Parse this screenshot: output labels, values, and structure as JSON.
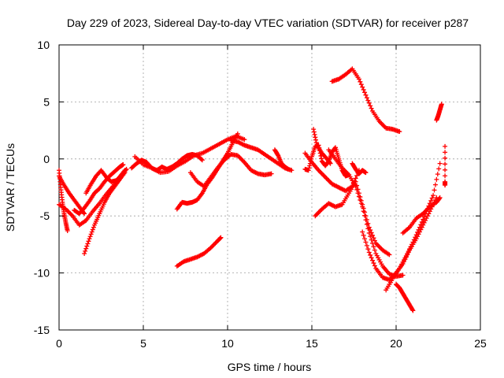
{
  "chart_data": {
    "type": "scatter",
    "title": "Day 229 of 2023, Sidereal Day-to-day VTEC variation (SDTVAR) for receiver p287",
    "xlabel": "GPS time / hours",
    "ylabel": "SDTVAR / TECUs",
    "xlim": [
      0,
      25
    ],
    "ylim": [
      -15,
      10
    ],
    "xticks": [
      "0",
      "5",
      "10",
      "15",
      "20",
      "25"
    ],
    "yticks": [
      "-15",
      "-10",
      "-5",
      "0",
      "5",
      "10"
    ],
    "grid": true,
    "marker": "+",
    "color": "#ff0000",
    "series": [
      {
        "x": [
          0.0,
          0.1,
          0.2,
          0.3,
          0.4,
          0.5
        ],
        "y": [
          -1.0,
          -2.5,
          -3.8,
          -4.8,
          -5.6,
          -6.3
        ]
      },
      {
        "x": [
          0.0,
          0.3,
          0.6,
          0.9,
          1.2,
          1.5
        ],
        "y": [
          -1.5,
          -2.3,
          -3.0,
          -3.6,
          -4.2,
          -4.8
        ]
      },
      {
        "x": [
          0.0,
          0.4,
          0.8,
          1.2,
          1.6,
          2.0,
          2.4,
          2.8,
          3.2,
          3.6,
          3.9
        ],
        "y": [
          -4.0,
          -4.4,
          -5.0,
          -5.8,
          -5.4,
          -4.6,
          -3.9,
          -3.1,
          -2.4,
          -1.6,
          -1.0
        ]
      },
      {
        "x": [
          0.9,
          1.2,
          1.5,
          1.8,
          2.1,
          2.4,
          2.7,
          3.0,
          3.3,
          3.6,
          3.8
        ],
        "y": [
          -4.5,
          -4.8,
          -4.3,
          -3.7,
          -3.0,
          -2.6,
          -2.0,
          -1.5,
          -1.1,
          -0.7,
          -0.5
        ]
      },
      {
        "x": [
          1.5,
          1.8,
          2.1,
          2.4,
          2.7,
          3.0,
          3.3,
          3.6,
          3.9
        ],
        "y": [
          -8.3,
          -7.0,
          -5.8,
          -4.8,
          -3.8,
          -3.0,
          -2.4,
          -1.8,
          -1.2
        ]
      },
      {
        "x": [
          1.6,
          1.9,
          2.2,
          2.5,
          2.8,
          3.1,
          3.4,
          3.7,
          4.0
        ],
        "y": [
          -3.0,
          -2.2,
          -1.5,
          -1.0,
          -1.6,
          -2.0,
          -1.9,
          -1.4,
          -0.9
        ]
      },
      {
        "x": [
          4.3,
          4.6,
          4.9,
          5.2,
          5.5,
          5.8,
          6.1,
          6.4,
          6.7,
          7.0,
          7.3,
          7.6,
          7.9,
          8.2,
          8.5
        ],
        "y": [
          -0.8,
          -0.4,
          -0.1,
          -0.3,
          -0.8,
          -1.0,
          -0.7,
          -0.9,
          -0.7,
          -0.4,
          0.0,
          0.3,
          0.4,
          0.3,
          -0.1
        ]
      },
      {
        "x": [
          4.5,
          5.0,
          5.5,
          6.0,
          6.5,
          7.0,
          7.5,
          8.0,
          8.5,
          9.0,
          9.5,
          10.0,
          10.5,
          11.0
        ],
        "y": [
          0.2,
          -0.5,
          -0.8,
          -1.2,
          -1.1,
          -0.6,
          -0.2,
          0.3,
          0.5,
          0.9,
          1.3,
          1.7,
          2.0,
          1.7
        ]
      },
      {
        "x": [
          7.0,
          7.3,
          7.6,
          7.9,
          8.2,
          8.5,
          8.8,
          9.1,
          9.4,
          9.7,
          10.0,
          10.3,
          10.6
        ],
        "y": [
          -4.4,
          -3.8,
          -3.9,
          -3.8,
          -3.6,
          -3.0,
          -2.2,
          -1.6,
          -0.9,
          -0.2,
          0.5,
          1.4,
          2.2
        ]
      },
      {
        "x": [
          7.8,
          8.2,
          8.6,
          9.0,
          9.4,
          9.8,
          10.2,
          10.6,
          11.0,
          11.4,
          11.8,
          12.2,
          12.6
        ],
        "y": [
          -1.2,
          -2.0,
          -2.4,
          -1.6,
          -0.8,
          -0.1,
          0.4,
          0.3,
          -0.3,
          -1.0,
          -1.3,
          -1.4,
          -1.3
        ]
      },
      {
        "x": [
          7.0,
          7.4,
          7.8,
          8.2,
          8.6,
          9.0,
          9.4,
          9.6
        ],
        "y": [
          -9.4,
          -9.0,
          -8.8,
          -8.6,
          -8.3,
          -7.8,
          -7.2,
          -6.9
        ]
      },
      {
        "x": [
          10.2,
          10.6,
          11.0,
          11.4,
          11.8,
          12.2,
          12.6,
          13.0,
          13.4,
          13.8
        ],
        "y": [
          1.6,
          1.5,
          1.2,
          1.0,
          0.8,
          0.4,
          0.0,
          -0.4,
          -0.8,
          -1.0
        ]
      },
      {
        "x": [
          12.8,
          13.0,
          13.2,
          13.4,
          13.6
        ],
        "y": [
          0.8,
          0.3,
          -0.4,
          -0.7,
          -0.9
        ]
      },
      {
        "x": [
          14.6,
          14.8,
          15.0,
          15.2,
          15.4,
          15.6,
          15.8,
          16.0,
          16.2,
          16.4,
          16.6,
          16.8,
          17.0,
          17.2
        ],
        "y": [
          -0.9,
          -1.0,
          0.2,
          1.1,
          1.2,
          -0.2,
          -0.6,
          -0.2,
          0.6,
          1.0,
          0.0,
          -1.0,
          -1.5,
          -1.4
        ]
      },
      {
        "x": [
          14.6,
          15.0,
          15.4,
          15.8,
          16.2,
          16.6,
          17.0,
          17.4,
          17.8
        ],
        "y": [
          0.5,
          -0.3,
          -1.0,
          -1.6,
          -2.2,
          -2.5,
          -2.8,
          -2.4,
          -1.0
        ]
      },
      {
        "x": [
          15.1,
          15.3,
          15.6,
          15.9,
          16.1
        ],
        "y": [
          2.6,
          1.2,
          0.5,
          0.0,
          -0.4
        ]
      },
      {
        "x": [
          15.2,
          15.6,
          16.0,
          16.4,
          16.8,
          17.2,
          17.6,
          18.0,
          18.4,
          18.8,
          19.2,
          19.6
        ],
        "y": [
          -5.0,
          -4.4,
          -3.9,
          -4.2,
          -4.0,
          -3.0,
          -2.0,
          -4.0,
          -6.0,
          -7.4,
          -8.0,
          -8.4
        ]
      },
      {
        "x": [
          16.0,
          16.4,
          16.8,
          17.2,
          17.6,
          18.0,
          18.4,
          18.8,
          19.2,
          19.6,
          20.0,
          20.4
        ],
        "y": [
          0.8,
          0.0,
          -0.8,
          -1.4,
          -2.4,
          -4.2,
          -6.5,
          -8.3,
          -9.4,
          -10.1,
          -10.3,
          -10.2
        ]
      },
      {
        "x": [
          16.2,
          16.6,
          17.0,
          17.4,
          17.8,
          18.2,
          18.6,
          19.0,
          19.4,
          19.8,
          20.2
        ],
        "y": [
          6.8,
          7.0,
          7.4,
          7.9,
          7.0,
          5.6,
          4.2,
          3.3,
          2.7,
          2.6,
          2.4
        ]
      },
      {
        "x": [
          17.4,
          17.6,
          17.8,
          18.0,
          18.2
        ],
        "y": [
          -0.4,
          -0.9,
          -1.3,
          -1.0,
          -1.2
        ]
      },
      {
        "x": [
          18.0,
          18.4,
          18.8,
          19.2,
          19.6,
          20.0,
          20.4,
          20.8,
          21.2,
          21.6,
          22.0,
          22.4
        ],
        "y": [
          -6.4,
          -8.2,
          -9.6,
          -10.4,
          -10.6,
          -10.0,
          -9.2,
          -8.0,
          -7.0,
          -5.8,
          -4.6,
          -3.4
        ]
      },
      {
        "x": [
          19.4,
          19.8,
          20.2,
          20.6,
          21.0,
          21.4,
          21.8,
          22.2,
          22.6
        ],
        "y": [
          -11.5,
          -10.5,
          -9.6,
          -8.5,
          -7.3,
          -6.0,
          -4.6,
          -3.2,
          -0.4
        ]
      },
      {
        "x": [
          20.0,
          20.2,
          20.4,
          20.6,
          20.8,
          21.0
        ],
        "y": [
          -11.0,
          -11.3,
          -11.8,
          -12.3,
          -12.8,
          -13.3
        ]
      },
      {
        "x": [
          20.4,
          20.8,
          21.2,
          21.6,
          22.0,
          22.4,
          22.6
        ],
        "y": [
          -6.5,
          -6.0,
          -5.2,
          -4.8,
          -4.2,
          -3.8,
          -3.4
        ]
      },
      {
        "x": [
          22.4,
          22.5,
          22.6,
          22.7
        ],
        "y": [
          3.4,
          3.8,
          4.3,
          4.8
        ]
      },
      {
        "x": [
          22.9,
          22.9,
          22.9
        ],
        "y": [
          1.1,
          -2.0,
          -2.3
        ]
      }
    ]
  }
}
